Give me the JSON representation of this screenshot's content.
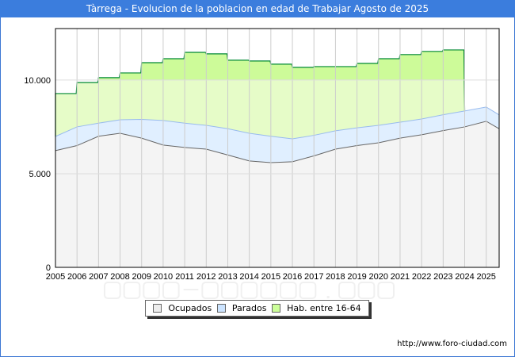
{
  "title": "Tàrrega - Evolucion de la poblacion en edad de Trabajar Agosto de 2025",
  "watermark": "FORO-CIUDAD.COM",
  "url": "http://www.foro-ciudad.com",
  "chart_data": {
    "type": "area",
    "title": "Tàrrega - Evolucion de la poblacion en edad de Trabajar Agosto de 2025",
    "xlabel": "",
    "ylabel": "",
    "xlim": [
      2005,
      2025.6
    ],
    "ylim": [
      0,
      12750
    ],
    "yticks": [
      {
        "v": 0,
        "label": "0"
      },
      {
        "v": 5000,
        "label": "5.000"
      },
      {
        "v": 10000,
        "label": "10.000"
      }
    ],
    "xticks": [
      "2005",
      "2006",
      "2007",
      "2008",
      "2009",
      "2010",
      "2011",
      "2012",
      "2013",
      "2014",
      "2015",
      "2016",
      "2017",
      "2018",
      "2019",
      "2020",
      "2021",
      "2022",
      "2023",
      "2024",
      "2025"
    ],
    "grid": true,
    "legend_position": "bottom",
    "x": [
      2005,
      2006,
      2007,
      2008,
      2009,
      2010,
      2011,
      2012,
      2013,
      2014,
      2015,
      2016,
      2017,
      2018,
      2019,
      2020,
      2021,
      2022,
      2023,
      2024,
      2025,
      2025.6
    ],
    "series": [
      {
        "name": "Ocupados",
        "color": "#f4f4f4",
        "line": "#666666",
        "values": [
          6230,
          6500,
          7000,
          7160,
          6900,
          6530,
          6400,
          6310,
          6000,
          5680,
          5590,
          5640,
          5950,
          6310,
          6500,
          6650,
          6900,
          7080,
          7300,
          7500,
          7800,
          7400
        ]
      },
      {
        "name": "Parados",
        "color": "#ddeeff",
        "line": "#99bbee",
        "values": [
          760,
          1000,
          700,
          720,
          1000,
          1310,
          1300,
          1270,
          1400,
          1480,
          1410,
          1220,
          1100,
          980,
          950,
          930,
          850,
          840,
          850,
          850,
          760,
          740
        ]
      },
      {
        "name": "Hab. entre 16-64",
        "color": "#ccff99",
        "line": "#008833",
        "x": [
          2005,
          2006,
          2007,
          2008,
          2009,
          2010,
          2011,
          2012,
          2013,
          2014,
          2015,
          2016,
          2017,
          2018,
          2019,
          2020,
          2021,
          2022,
          2023
        ],
        "values": [
          9280,
          9870,
          10130,
          10380,
          10930,
          11140,
          11480,
          11400,
          11060,
          11020,
          10850,
          10680,
          10720,
          10720,
          10890,
          11140,
          11360,
          11530,
          11610
        ]
      }
    ]
  }
}
